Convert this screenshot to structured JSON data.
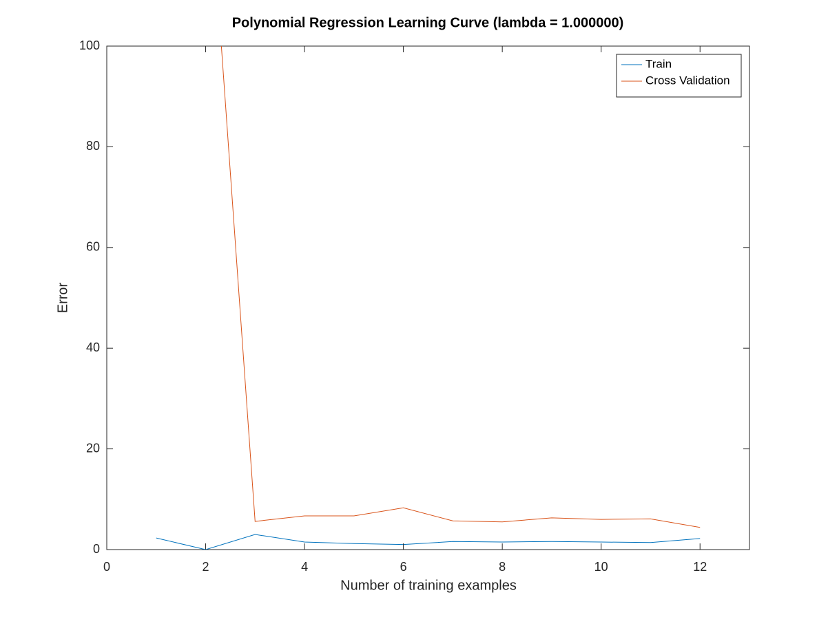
{
  "chart_data": {
    "type": "line",
    "title": "Polynomial Regression Learning Curve (lambda = 1.000000)",
    "x_label": "Number of training examples",
    "y_label": "Error",
    "x": [
      1,
      2,
      3,
      4,
      5,
      6,
      7,
      8,
      9,
      10,
      11,
      12
    ],
    "series": [
      {
        "name": "Train",
        "color": "#0072bd",
        "values": [
          2.3,
          0,
          3.0,
          1.5,
          1.2,
          1.0,
          1.6,
          1.5,
          1.6,
          1.5,
          1.4,
          2.2
        ]
      },
      {
        "name": "Cross Validation",
        "color": "#d95319",
        "values": [
          null,
          144,
          5.6,
          6.7,
          6.7,
          8.3,
          5.7,
          5.5,
          6.3,
          6.0,
          6.1,
          4.4
        ]
      }
    ],
    "xlim": [
      0,
      13
    ],
    "xticks": [
      0,
      2,
      4,
      6,
      8,
      10,
      12
    ],
    "ylim": [
      0,
      100
    ],
    "yticks": [
      0,
      20,
      40,
      60,
      80,
      100
    ],
    "legend": "northeast",
    "grid": false
  }
}
